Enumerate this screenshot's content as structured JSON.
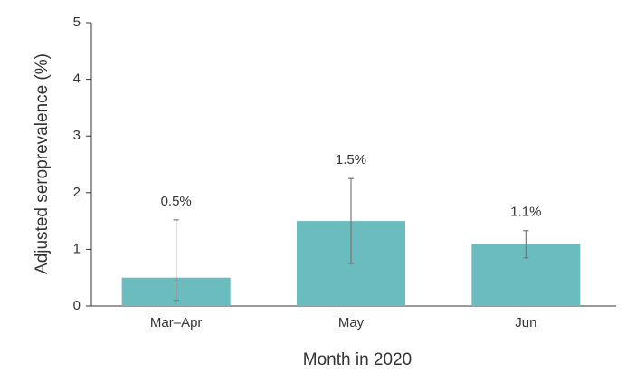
{
  "chart_data": {
    "type": "bar",
    "categories": [
      "Mar–Apr",
      "May",
      "Jun"
    ],
    "values": [
      0.5,
      1.5,
      1.1
    ],
    "value_labels": [
      "0.5%",
      "1.5%",
      "1.1%"
    ],
    "ci_lower": [
      0.1,
      0.75,
      0.85
    ],
    "ci_upper": [
      1.52,
      2.25,
      1.33
    ],
    "color": "#6bbcbf",
    "xlabel": "Month in 2020",
    "ylabel": "Adjusted seroprevalence (%)",
    "ylim": [
      0,
      5
    ],
    "yticks": [
      0,
      1,
      2,
      3,
      4,
      5
    ]
  }
}
